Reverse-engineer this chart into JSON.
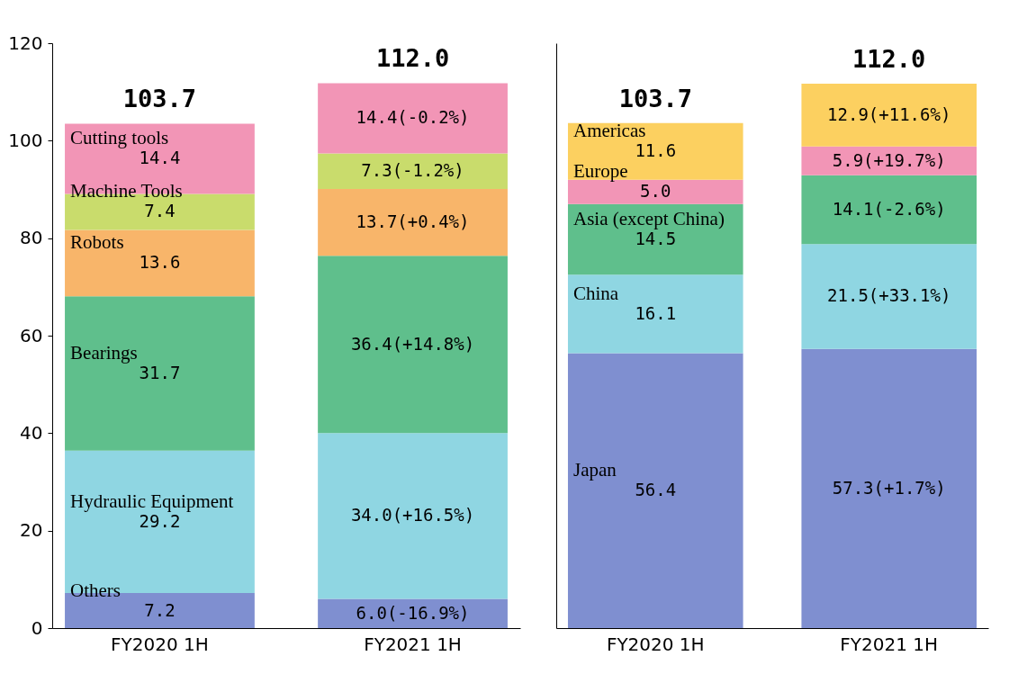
{
  "chart_data": [
    {
      "type": "bar",
      "stacked": true,
      "categories": [
        "FY2020 1H",
        "FY2021 1H"
      ],
      "ylim": [
        0,
        120
      ],
      "yticks": [
        0,
        20,
        40,
        60,
        80,
        100,
        120
      ],
      "totals": [
        "103.7",
        "112.0"
      ],
      "series": [
        {
          "name": "Others",
          "color": "#7f8fd0",
          "values": [
            7.2,
            6.0
          ],
          "value_labels": [
            "7.2",
            "6.0(-16.9%)"
          ]
        },
        {
          "name": "Hydraulic Equipment",
          "color": "#8fd6e2",
          "values": [
            29.2,
            34.0
          ],
          "value_labels": [
            "29.2",
            "34.0(+16.5%)"
          ]
        },
        {
          "name": "Bearings",
          "color": "#5fbf8c",
          "values": [
            31.7,
            36.4
          ],
          "value_labels": [
            "31.7",
            "36.4(+14.8%)"
          ]
        },
        {
          "name": "Robots",
          "color": "#f8b56a",
          "values": [
            13.6,
            13.7
          ],
          "value_labels": [
            "13.6",
            "13.7(+0.4%)"
          ]
        },
        {
          "name": "Machine Tools",
          "color": "#c9dc6c",
          "values": [
            7.4,
            7.3
          ],
          "value_labels": [
            "7.4",
            "7.3(-1.2%)"
          ]
        },
        {
          "name": "Cutting tools",
          "color": "#f295b6",
          "values": [
            14.4,
            14.4
          ],
          "value_labels": [
            "14.4",
            "14.4(-0.2%)"
          ]
        }
      ]
    },
    {
      "type": "bar",
      "stacked": true,
      "categories": [
        "FY2020 1H",
        "FY2021 1H"
      ],
      "ylim": [
        0,
        120
      ],
      "yticks": [
        0,
        20,
        40,
        60,
        80,
        100,
        120
      ],
      "tick_labels": "x",
      "totals": [
        "103.7",
        "112.0"
      ],
      "series": [
        {
          "name": "Japan",
          "color": "#7f8fd0",
          "values": [
            56.4,
            57.3
          ],
          "value_labels": [
            "56.4",
            "57.3(+1.7%)"
          ]
        },
        {
          "name": "China",
          "color": "#8fd6e2",
          "values": [
            16.1,
            21.5
          ],
          "value_labels": [
            "16.1",
            "21.5(+33.1%)"
          ]
        },
        {
          "name": "Asia (except China)",
          "color": "#5fbf8c",
          "values": [
            14.5,
            14.1
          ],
          "value_labels": [
            "14.5",
            "14.1(-2.6%)"
          ]
        },
        {
          "name": "Europe",
          "color": "#f295b6",
          "values": [
            5.0,
            5.9
          ],
          "value_labels": [
            "5.0",
            "5.9(+19.7%)"
          ]
        },
        {
          "name": "Americas",
          "color": "#fcd060",
          "values": [
            11.6,
            12.9
          ],
          "value_labels": [
            "11.6",
            "12.9(+11.6%)"
          ]
        }
      ]
    }
  ]
}
